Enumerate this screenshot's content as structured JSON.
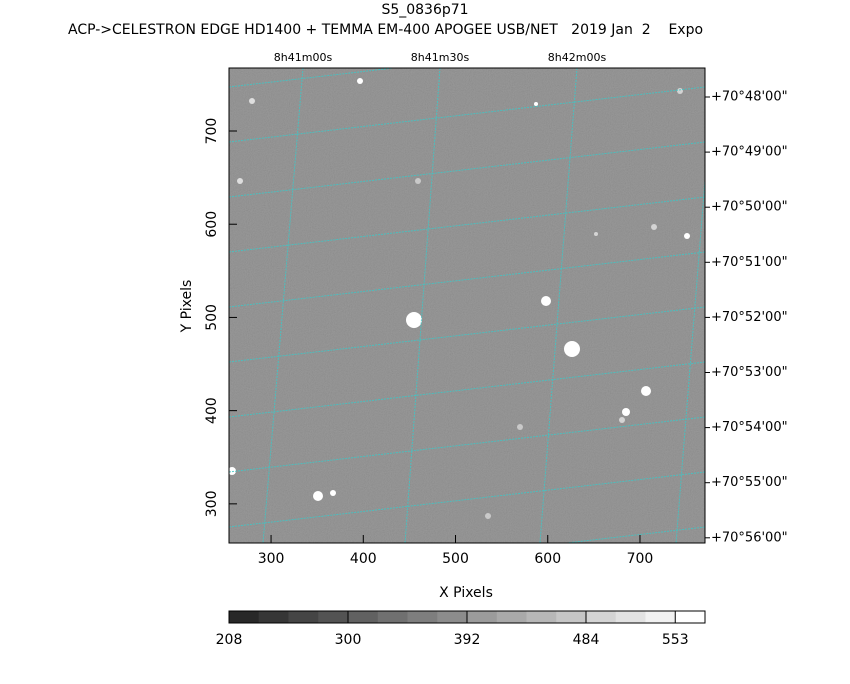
{
  "chart_data": {
    "type": "image",
    "title": "S5_0836p71",
    "subtitle": "ACP->CELESTRON EDGE HD1400 + TEMMA EM-400 APOGEE USB/NET   2019 Jan  2    Expo",
    "x_label": "X Pixels",
    "y_label": "Y Pixels",
    "xlim": [
      254.4,
      770.5
    ],
    "xticks": [
      300,
      400,
      500,
      600,
      700
    ],
    "ylim": [
      258,
      767.6
    ],
    "yticks": [
      300,
      400,
      500,
      600,
      700
    ],
    "ra_labels": [
      "8h41m00s",
      "8h41m30s",
      "8h42m00s"
    ],
    "dec_labels": [
      "+70°48'00\"",
      "+70°49'00\"",
      "+70°50'00\"",
      "+70°51'00\"",
      "+70°52'00\"",
      "+70°53'00\"",
      "+70°54'00\"",
      "+70°55'00\"",
      "+70°56'00\""
    ],
    "colorbar": {
      "lim": [
        208,
        576
      ],
      "ticks": [
        208,
        300,
        392,
        484,
        553
      ]
    }
  }
}
